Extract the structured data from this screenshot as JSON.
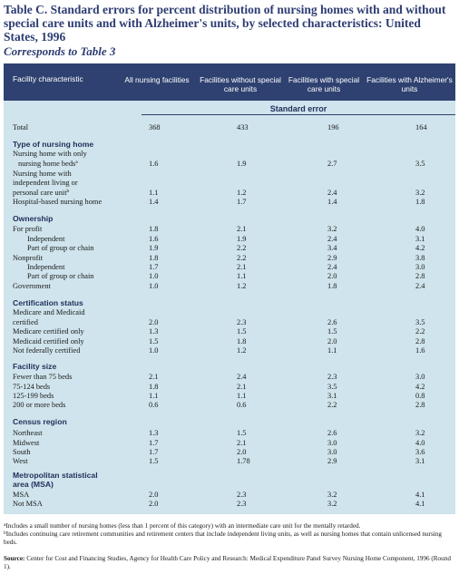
{
  "title": "Table C. Standard errors for percent distribution of nursing homes with and without special care units and with Alzheimer's units, by selected characteristics: United States, 1996",
  "subtitle": "Corresponds to Table 3",
  "columns": {
    "c0": "Facility characteristic",
    "c1": "All nursing facilities",
    "c2": "Facilities without special care units",
    "c3": "Facilities with special care units",
    "c4": "Facilities with Alzheimer's units"
  },
  "se_label": "Standard error",
  "rows": {
    "total": {
      "label": "Total",
      "v": [
        "368",
        "433",
        "196",
        "164"
      ]
    },
    "sec_type": "Type of nursing home",
    "nh_only_a": "Nursing home with only",
    "nh_only_b": "nursing home beds",
    "nh_only_sup": "a",
    "nh_only_v": [
      "1.6",
      "1.9",
      "2.7",
      "3.5"
    ],
    "nh_ind_a": "Nursing home with",
    "nh_ind_b": "independent living or",
    "nh_ind_c": "personal care unit",
    "nh_ind_sup": "b",
    "nh_ind_v": [
      "1.1",
      "1.2",
      "2.4",
      "3.2"
    ],
    "hosp": {
      "label": "Hospital-based nursing home",
      "v": [
        "1.4",
        "1.7",
        "1.4",
        "1.8"
      ]
    },
    "sec_own": "Ownership",
    "fp": {
      "label": "For profit",
      "v": [
        "1.8",
        "2.1",
        "3.2",
        "4.0"
      ]
    },
    "fp_ind": {
      "label": "Independent",
      "v": [
        "1.6",
        "1.9",
        "2.4",
        "3.1"
      ]
    },
    "fp_chain": {
      "label": "Part of group or chain",
      "v": [
        "1.9",
        "2.2",
        "3.4",
        "4.2"
      ]
    },
    "np": {
      "label": "Nonprofit",
      "v": [
        "1.8",
        "2.2",
        "2.9",
        "3.8"
      ]
    },
    "np_ind": {
      "label": "Independent",
      "v": [
        "1.7",
        "2.1",
        "2.4",
        "3.0"
      ]
    },
    "np_chain": {
      "label": "Part of group or chain",
      "v": [
        "1.0",
        "1.1",
        "2.0",
        "2.8"
      ]
    },
    "gov": {
      "label": "Government",
      "v": [
        "1.0",
        "1.2",
        "1.8",
        "2.4"
      ]
    },
    "sec_cert": "Certification status",
    "mm_a": "Medicare and Medicaid",
    "mm_b": "certified",
    "mm_v": [
      "2.0",
      "2.3",
      "2.6",
      "3.5"
    ],
    "mcare": {
      "label": "Medicare certified only",
      "v": [
        "1.3",
        "1.5",
        "1.5",
        "2.2"
      ]
    },
    "mcaid": {
      "label": "Medicaid certified only",
      "v": [
        "1.5",
        "1.8",
        "2.0",
        "2.8"
      ]
    },
    "notfed": {
      "label": "Not federally certified",
      "v": [
        "1.0",
        "1.2",
        "1.1",
        "1.6"
      ]
    },
    "sec_size": "Facility size",
    "s1": {
      "label": "Fewer than 75 beds",
      "v": [
        "2.1",
        "2.4",
        "2.3",
        "3.0"
      ]
    },
    "s2": {
      "label": "75-124 beds",
      "v": [
        "1.8",
        "2.1",
        "3.5",
        "4.2"
      ]
    },
    "s3": {
      "label": "125-199 beds",
      "v": [
        "1.1",
        "1.1",
        "3.1",
        "0.8"
      ]
    },
    "s4": {
      "label": "200 or more beds",
      "v": [
        "0.6",
        "0.6",
        "2.2",
        "2.8"
      ]
    },
    "sec_census": "Census region",
    "ne": {
      "label": "Northeast",
      "v": [
        "1.3",
        "1.5",
        "2.6",
        "3.2"
      ]
    },
    "mw": {
      "label": "Midwest",
      "v": [
        "1.7",
        "2.1",
        "3.0",
        "4.0"
      ]
    },
    "so": {
      "label": "South",
      "v": [
        "1.7",
        "2.0",
        "3.0",
        "3.6"
      ]
    },
    "we": {
      "label": "West",
      "v": [
        "1.5",
        "1.78",
        "2.9",
        "3.1"
      ]
    },
    "sec_msa_a": "Metropolitan statistical",
    "sec_msa_b": "area (MSA)",
    "msa": {
      "label": "MSA",
      "v": [
        "2.0",
        "2.3",
        "3.2",
        "4.1"
      ]
    },
    "notmsa": {
      "label": "Not MSA",
      "v": [
        "2.0",
        "2.3",
        "3.2",
        "4.1"
      ]
    }
  },
  "footnotes": {
    "a_sup": "a",
    "a": "Includes a small number of nursing homes (less than 1 percent of this category) with an intermediate care unit for the mentally retarded.",
    "b_sup": "b",
    "b": "Includes continuing care retirement communities and retirement centers that include independent living units, as well as nursing homes that contain unlicensed nursing beds."
  },
  "source": {
    "label": "Source:",
    "text": "Center for Cost and Financing Studies, Agency for Health Care Policy and Research: Medical Expenditure Panel Survey Nursing Home Component, 1996 (Round 1)."
  },
  "colors": {
    "header_bg": "#2e4170",
    "table_bg": "#cfe4ec",
    "title": "#2e3d73"
  }
}
